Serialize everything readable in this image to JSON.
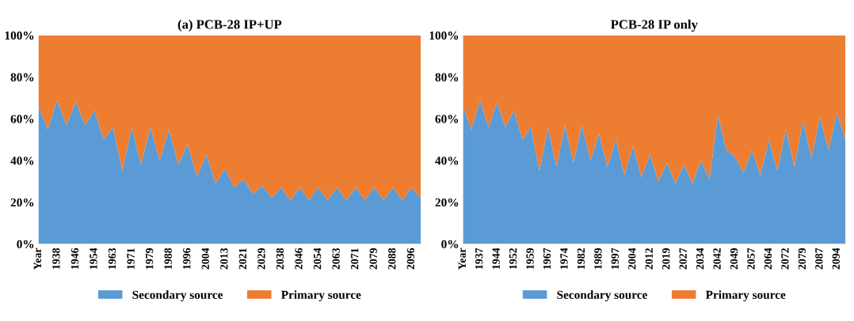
{
  "chart_data": [
    {
      "type": "area",
      "stacked": true,
      "title": "(a) PCB-28 IP+UP",
      "legend": "bottom",
      "grid": false,
      "categories": [
        "Year",
        null,
        "1938",
        null,
        "1946",
        null,
        "1954",
        null,
        "1963",
        null,
        "1971",
        null,
        "1979",
        null,
        "1988",
        null,
        "1996",
        null,
        "2004",
        null,
        "2013",
        null,
        "2021",
        null,
        "2029",
        null,
        "2038",
        null,
        "2046",
        null,
        "2054",
        null,
        "2063",
        null,
        "2071",
        null,
        "2079",
        null,
        "2088",
        null,
        "2096",
        null
      ],
      "ylim": [
        0,
        100
      ],
      "yticks": [
        {
          "value": 0,
          "label": "0%"
        },
        {
          "value": 20,
          "label": "20%"
        },
        {
          "value": 40,
          "label": "40%"
        },
        {
          "value": 60,
          "label": "60%"
        },
        {
          "value": 80,
          "label": "80%"
        },
        {
          "value": 100,
          "label": "100%"
        }
      ],
      "series": [
        {
          "name": "Secondary source",
          "color": "#5b9bd5",
          "values": [
            66,
            55,
            69,
            57,
            68,
            57,
            64,
            50,
            56,
            35,
            56,
            38,
            56,
            40,
            55,
            38,
            48,
            32,
            43,
            29,
            36,
            27,
            31,
            24,
            28,
            22,
            27,
            21,
            27,
            21,
            27,
            21,
            27,
            21,
            27,
            21,
            27,
            21,
            27,
            21,
            27,
            22
          ]
        },
        {
          "name": "Primary source",
          "color": "#ed7d31",
          "values": [
            34,
            45,
            31,
            43,
            32,
            43,
            36,
            50,
            44,
            65,
            44,
            62,
            44,
            60,
            45,
            62,
            52,
            68,
            57,
            71,
            64,
            73,
            69,
            76,
            72,
            78,
            73,
            79,
            73,
            79,
            73,
            79,
            73,
            79,
            73,
            79,
            73,
            79,
            73,
            79,
            73,
            78
          ]
        }
      ]
    },
    {
      "type": "area",
      "stacked": true,
      "title": "PCB-28 IP only",
      "legend": "bottom",
      "grid": false,
      "categories": [
        "Year",
        null,
        "1937",
        null,
        "1944",
        null,
        "1952",
        null,
        "1959",
        null,
        "1967",
        null,
        "1974",
        null,
        "1982",
        null,
        "1989",
        null,
        "1997",
        null,
        "2004",
        null,
        "2012",
        null,
        "2019",
        null,
        "2027",
        null,
        "2034",
        null,
        "2042",
        null,
        "2049",
        null,
        "2057",
        null,
        "2064",
        null,
        "2072",
        null,
        "2079",
        null,
        "2087",
        null,
        "2094",
        null
      ],
      "ylim": [
        0,
        100
      ],
      "yticks": [
        {
          "value": 0,
          "label": "0%"
        },
        {
          "value": 20,
          "label": "20%"
        },
        {
          "value": 40,
          "label": "40%"
        },
        {
          "value": 60,
          "label": "60%"
        },
        {
          "value": 80,
          "label": "80%"
        },
        {
          "value": 100,
          "label": "100%"
        }
      ],
      "series": [
        {
          "name": "Secondary source",
          "color": "#5b9bd5",
          "values": [
            66,
            55,
            69,
            56,
            68,
            56,
            64,
            50,
            56,
            35,
            56,
            37,
            57,
            39,
            57,
            40,
            53,
            37,
            50,
            33,
            47,
            32,
            43,
            30,
            39,
            29,
            38,
            29,
            40,
            31,
            62,
            45,
            42,
            34,
            45,
            33,
            50,
            35,
            55,
            37,
            59,
            41,
            61,
            45,
            63,
            50
          ]
        },
        {
          "name": "Primary source",
          "color": "#ed7d31",
          "values": [
            34,
            45,
            31,
            44,
            32,
            44,
            36,
            50,
            44,
            65,
            44,
            63,
            43,
            61,
            43,
            60,
            47,
            63,
            50,
            67,
            53,
            68,
            57,
            70,
            61,
            71,
            62,
            71,
            60,
            69,
            38,
            55,
            58,
            66,
            55,
            67,
            50,
            65,
            45,
            63,
            41,
            59,
            39,
            55,
            37,
            50
          ]
        }
      ]
    }
  ]
}
